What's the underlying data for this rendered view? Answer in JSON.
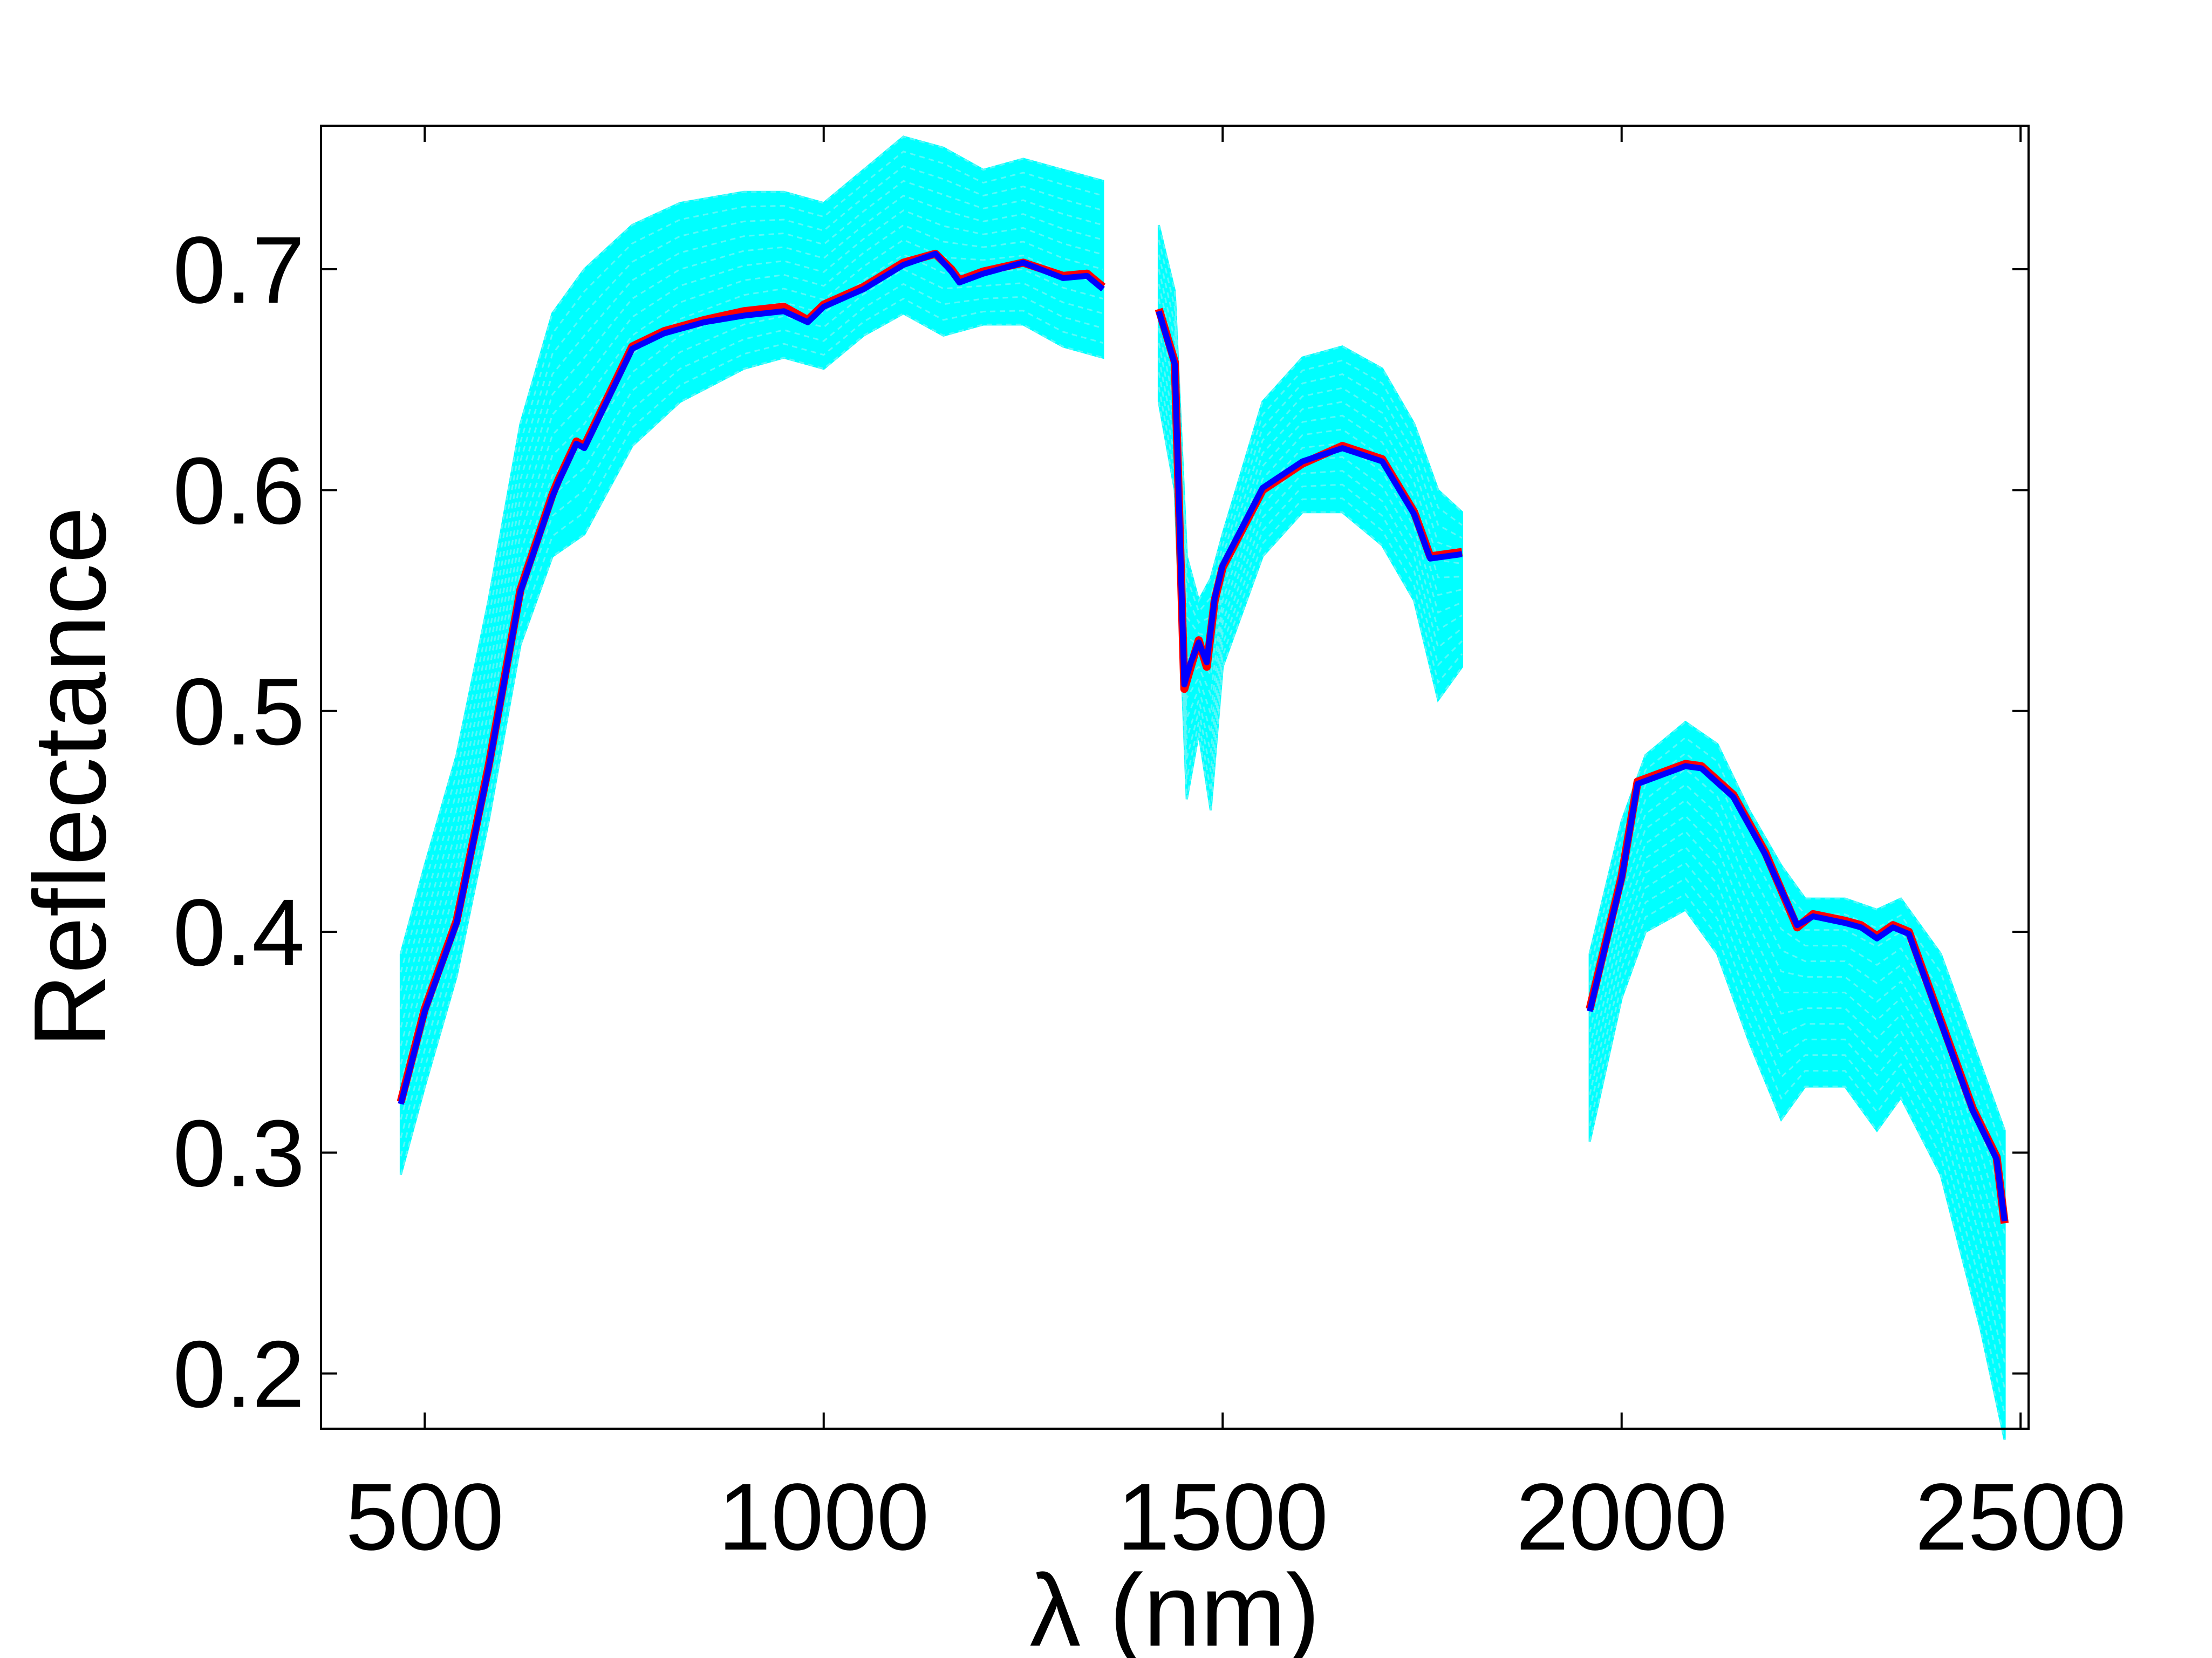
{
  "chart_data": {
    "type": "line",
    "title": "",
    "xlabel": "λ (nm)",
    "ylabel": "Reflectance",
    "xlim": [
      370,
      2510
    ],
    "ylim": [
      0.175,
      0.765
    ],
    "x_ticks": [
      500,
      1000,
      1500,
      2000,
      2500
    ],
    "y_ticks": [
      0.2,
      0.3,
      0.4,
      0.5,
      0.6,
      0.7
    ],
    "x_tick_labels": [
      "500",
      "1000",
      "1500",
      "2000",
      "2500"
    ],
    "y_tick_labels": [
      "0.2",
      "0.3",
      "0.4",
      "0.5",
      "0.6",
      "0.7"
    ],
    "grid": false,
    "legend": "none",
    "colors": {
      "ensemble": "#00ffff",
      "mean": "#ff0000",
      "estimate": "#0000ff",
      "axes": "#000000"
    },
    "band_segments": [
      {
        "x": [
          470,
          500,
          540,
          580,
          620,
          660,
          700,
          760,
          820,
          900,
          950,
          1000,
          1050,
          1100,
          1150,
          1200,
          1250,
          1300,
          1350
        ],
        "upper": [
          0.39,
          0.43,
          0.48,
          0.55,
          0.63,
          0.68,
          0.7,
          0.72,
          0.73,
          0.735,
          0.735,
          0.73,
          0.745,
          0.76,
          0.755,
          0.745,
          0.75,
          0.745,
          0.74
        ],
        "lower": [
          0.29,
          0.33,
          0.38,
          0.45,
          0.53,
          0.57,
          0.58,
          0.62,
          0.64,
          0.655,
          0.66,
          0.655,
          0.67,
          0.68,
          0.67,
          0.675,
          0.675,
          0.665,
          0.66
        ]
      },
      {
        "x": [
          1420,
          1440,
          1455,
          1470,
          1485,
          1500,
          1550,
          1600,
          1650,
          1700,
          1740,
          1770,
          1800
        ],
        "upper": [
          0.72,
          0.69,
          0.57,
          0.55,
          0.56,
          0.58,
          0.64,
          0.66,
          0.665,
          0.655,
          0.63,
          0.6,
          0.59
        ],
        "lower": [
          0.64,
          0.6,
          0.46,
          0.49,
          0.455,
          0.52,
          0.57,
          0.59,
          0.59,
          0.575,
          0.55,
          0.505,
          0.52
        ]
      },
      {
        "x": [
          1960,
          2000,
          2030,
          2080,
          2120,
          2160,
          2200,
          2230,
          2280,
          2320,
          2350,
          2400,
          2450,
          2480
        ],
        "upper": [
          0.39,
          0.45,
          0.48,
          0.495,
          0.485,
          0.455,
          0.43,
          0.415,
          0.415,
          0.41,
          0.415,
          0.39,
          0.34,
          0.31
        ],
        "lower": [
          0.305,
          0.37,
          0.4,
          0.41,
          0.39,
          0.35,
          0.315,
          0.33,
          0.33,
          0.31,
          0.325,
          0.29,
          0.22,
          0.17
        ]
      }
    ],
    "series": [
      {
        "color": "#ff0000",
        "segments": [
          {
            "x": [
              470,
              500,
              540,
              580,
              620,
              660,
              668,
              690,
              700,
              760,
              800,
              850,
              900,
              950,
              980,
              1000,
              1050,
              1100,
              1140,
              1160,
              1170,
              1200,
              1250,
              1300,
              1330,
              1350
            ],
            "y": [
              0.323,
              0.365,
              0.405,
              0.475,
              0.555,
              0.598,
              0.605,
              0.622,
              0.62,
              0.665,
              0.672,
              0.677,
              0.681,
              0.683,
              0.677,
              0.684,
              0.692,
              0.703,
              0.707,
              0.7,
              0.695,
              0.699,
              0.703,
              0.697,
              0.698,
              0.692
            ]
          },
          {
            "x": [
              1420,
              1440,
              1452,
              1460,
              1470,
              1480,
              1490,
              1500,
              1550,
              1600,
              1650,
              1700,
              1740,
              1760,
              1800
            ],
            "y": [
              0.682,
              0.658,
              0.51,
              0.52,
              0.532,
              0.52,
              0.55,
              0.565,
              0.6,
              0.612,
              0.62,
              0.614,
              0.59,
              0.57,
              0.572
            ]
          },
          {
            "x": [
              1960,
              1980,
              2000,
              2020,
              2080,
              2100,
              2140,
              2180,
              2220,
              2240,
              2280,
              2300,
              2320,
              2340,
              2360,
              2400,
              2440,
              2470,
              2480
            ],
            "y": [
              0.365,
              0.395,
              0.425,
              0.468,
              0.476,
              0.475,
              0.462,
              0.436,
              0.402,
              0.408,
              0.405,
              0.403,
              0.398,
              0.403,
              0.4,
              0.36,
              0.32,
              0.298,
              0.268
            ]
          }
        ]
      },
      {
        "color": "#0000ff",
        "segments": [
          {
            "x": [
              470,
              500,
              540,
              580,
              620,
              660,
              668,
              690,
              700,
              760,
              800,
              850,
              900,
              950,
              980,
              1000,
              1050,
              1100,
              1140,
              1160,
              1170,
              1200,
              1250,
              1300,
              1330,
              1350
            ],
            "y": [
              0.322,
              0.364,
              0.404,
              0.474,
              0.554,
              0.597,
              0.604,
              0.621,
              0.619,
              0.664,
              0.671,
              0.676,
              0.679,
              0.681,
              0.676,
              0.683,
              0.691,
              0.702,
              0.707,
              0.699,
              0.694,
              0.698,
              0.703,
              0.696,
              0.697,
              0.691
            ]
          },
          {
            "x": [
              1420,
              1440,
              1452,
              1460,
              1470,
              1480,
              1490,
              1500,
              1550,
              1600,
              1650,
              1700,
              1740,
              1760,
              1800
            ],
            "y": [
              0.681,
              0.657,
              0.512,
              0.522,
              0.531,
              0.522,
              0.551,
              0.566,
              0.601,
              0.613,
              0.619,
              0.613,
              0.589,
              0.569,
              0.571
            ]
          },
          {
            "x": [
              1960,
              1980,
              2000,
              2020,
              2080,
              2100,
              2140,
              2180,
              2220,
              2240,
              2280,
              2300,
              2320,
              2340,
              2360,
              2400,
              2440,
              2470,
              2480
            ],
            "y": [
              0.364,
              0.394,
              0.424,
              0.467,
              0.475,
              0.474,
              0.461,
              0.435,
              0.403,
              0.407,
              0.404,
              0.402,
              0.397,
              0.402,
              0.399,
              0.359,
              0.319,
              0.297,
              0.269
            ]
          }
        ]
      }
    ]
  }
}
